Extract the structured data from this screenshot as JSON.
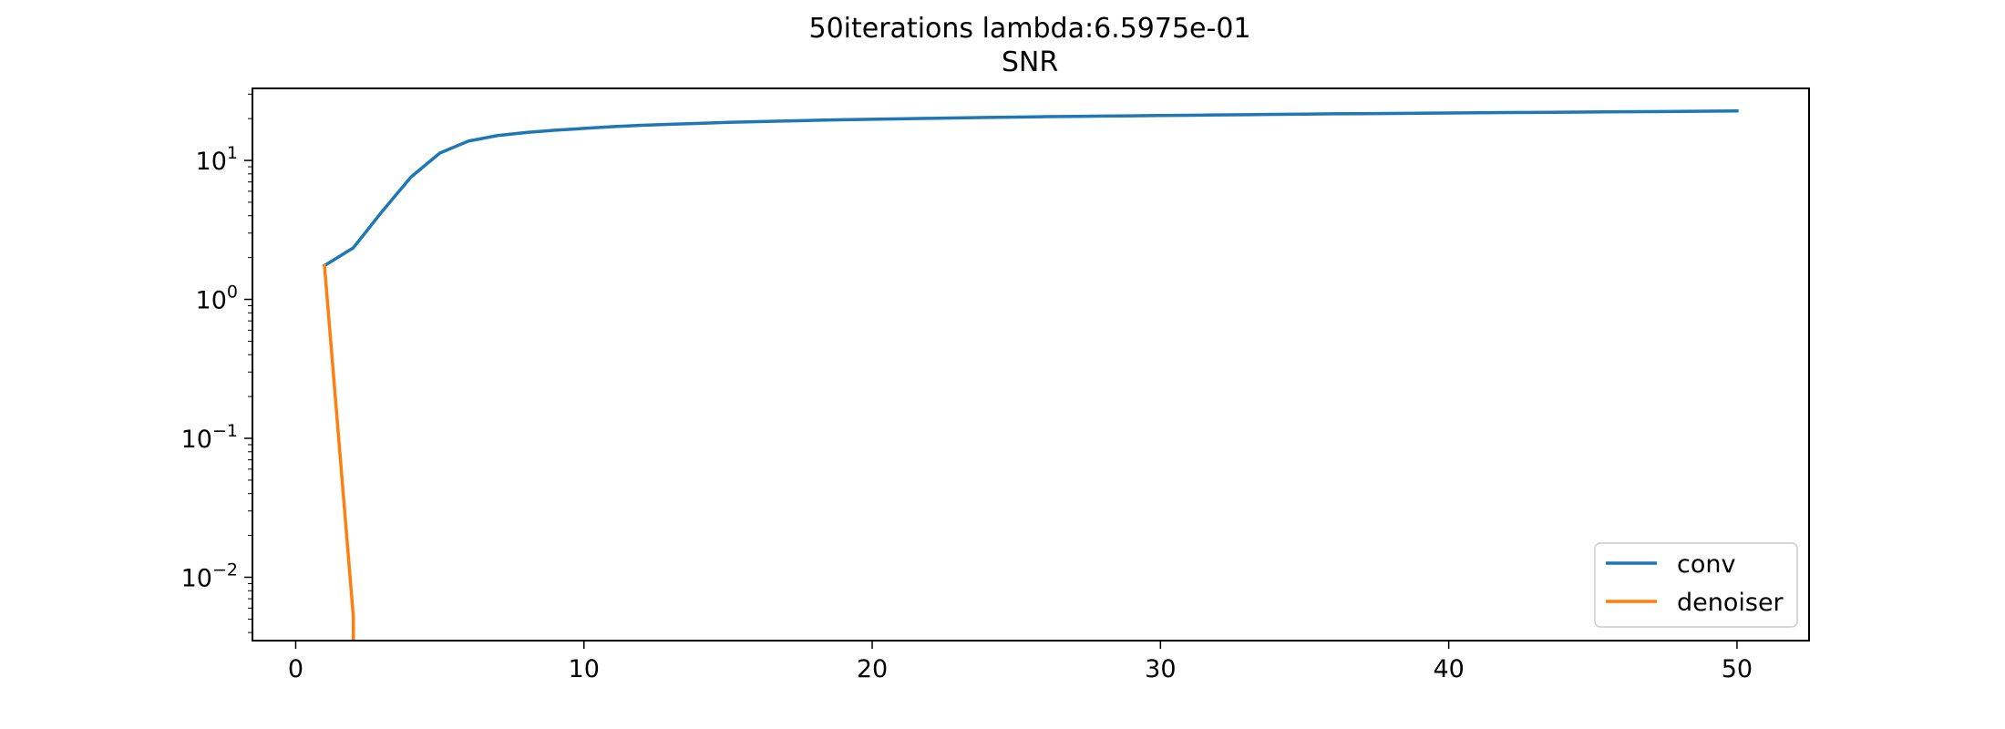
{
  "chart_data": {
    "type": "line",
    "title": "50iterations lambda:6.5975e-01",
    "subtitle": "SNR",
    "xlabel": "",
    "ylabel": "",
    "yscale": "log",
    "xlim": [
      -1.5,
      52.5
    ],
    "ylim": [
      0.0035,
      33
    ],
    "grid": false,
    "legend_position": "lower-right",
    "x_ticks": [
      0,
      10,
      20,
      30,
      40,
      50
    ],
    "y_ticks": [
      {
        "value": 0.01,
        "base": "10",
        "exp": "−2"
      },
      {
        "value": 0.1,
        "base": "10",
        "exp": "−1"
      },
      {
        "value": 1,
        "base": "10",
        "exp": "0"
      },
      {
        "value": 10,
        "base": "10",
        "exp": "1"
      }
    ],
    "series": [
      {
        "name": "conv",
        "color": "#1f77b4",
        "x": [
          1,
          2,
          3,
          4,
          5,
          6,
          7,
          8,
          9,
          10,
          11,
          12,
          13,
          14,
          15,
          16,
          17,
          18,
          19,
          20,
          21,
          22,
          23,
          24,
          25,
          26,
          27,
          28,
          29,
          30,
          31,
          32,
          33,
          34,
          35,
          36,
          37,
          38,
          39,
          40,
          41,
          42,
          43,
          44,
          45,
          46,
          47,
          48,
          49,
          50
        ],
        "y": [
          1.75,
          2.35,
          4.3,
          7.6,
          11.3,
          13.8,
          15.1,
          15.9,
          16.5,
          17.0,
          17.5,
          17.9,
          18.2,
          18.5,
          18.8,
          19.0,
          19.25,
          19.45,
          19.65,
          19.8,
          19.95,
          20.1,
          20.25,
          20.4,
          20.5,
          20.65,
          20.75,
          20.85,
          20.95,
          21.05,
          21.15,
          21.25,
          21.35,
          21.45,
          21.55,
          21.65,
          21.72,
          21.8,
          21.88,
          21.95,
          22.02,
          22.1,
          22.17,
          22.25,
          22.32,
          22.4,
          22.47,
          22.55,
          22.62,
          22.7
        ]
      },
      {
        "name": "denoiser",
        "color": "#ff7f0e",
        "x": [
          1,
          2,
          2
        ],
        "y": [
          1.75,
          0.0052,
          0.0035
        ]
      }
    ]
  }
}
